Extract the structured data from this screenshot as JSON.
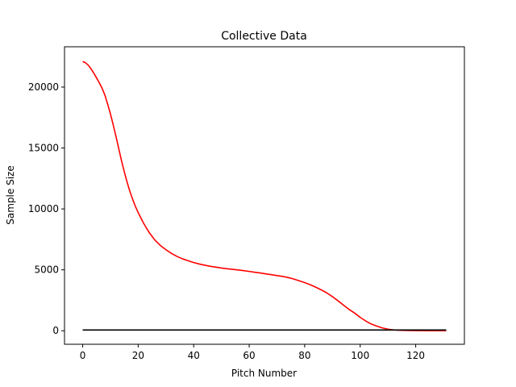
{
  "chart_data": {
    "type": "line",
    "title": "Collective Data",
    "xlabel": "Pitch Number",
    "ylabel": "Sample Size",
    "xlim": [
      -6.55,
      137.55
    ],
    "ylim": [
      -1110,
      23310
    ],
    "xticks": [
      0,
      20,
      40,
      60,
      80,
      100,
      120
    ],
    "yticks": [
      0,
      5000,
      10000,
      15000,
      20000
    ],
    "grid": false,
    "series": [
      {
        "color": "#ff0000",
        "x": [
          0,
          1,
          2,
          3,
          4,
          5,
          6,
          7,
          8,
          9,
          10,
          11,
          12,
          13,
          14,
          15,
          16,
          17,
          18,
          19,
          20,
          22,
          24,
          26,
          28,
          30,
          32,
          34,
          36,
          38,
          40,
          42,
          44,
          46,
          48,
          50,
          52,
          54,
          56,
          58,
          60,
          62,
          64,
          66,
          68,
          70,
          72,
          74,
          76,
          78,
          80,
          82,
          84,
          86,
          88,
          90,
          92,
          94,
          96,
          98,
          100,
          102,
          104,
          106,
          108,
          110,
          112,
          114,
          116,
          118,
          120,
          122,
          124,
          126,
          128,
          131
        ],
        "y": [
          22100,
          22000,
          21800,
          21500,
          21150,
          20750,
          20350,
          19900,
          19350,
          18600,
          17800,
          16900,
          15950,
          14950,
          13950,
          13050,
          12200,
          11450,
          10800,
          10200,
          9700,
          8800,
          8050,
          7450,
          7000,
          6650,
          6350,
          6100,
          5900,
          5750,
          5600,
          5480,
          5380,
          5290,
          5220,
          5150,
          5090,
          5040,
          4990,
          4930,
          4870,
          4800,
          4740,
          4670,
          4600,
          4530,
          4460,
          4370,
          4250,
          4100,
          3950,
          3780,
          3570,
          3350,
          3100,
          2800,
          2460,
          2100,
          1750,
          1450,
          1100,
          800,
          550,
          380,
          230,
          130,
          70,
          40,
          25,
          15,
          10,
          8,
          6,
          5,
          4,
          3
        ]
      },
      {
        "color": "#000000",
        "x": [
          0,
          131
        ],
        "y": [
          60,
          60
        ]
      }
    ]
  }
}
